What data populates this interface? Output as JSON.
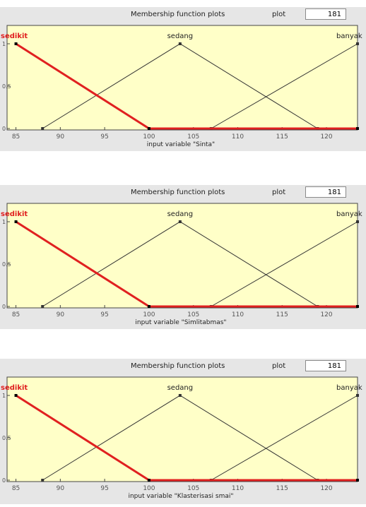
{
  "panels": [
    {
      "header_title": "Membership function plots",
      "plot_label": "plot",
      "plot_points": "181",
      "xlabel": "input variable \"Sinta\"",
      "xticks": [
        "85",
        "90",
        "95",
        "100",
        "105",
        "110",
        "115",
        "120"
      ],
      "yticks": [
        "0",
        "0.5",
        "1"
      ],
      "mf_labels": [
        "sedikit",
        "sedang",
        "banyak"
      ]
    },
    {
      "header_title": "Membership function plots",
      "plot_label": "plot",
      "plot_points": "181",
      "xlabel": "input variable \"Simlitabmas\"",
      "xticks": [
        "85",
        "90",
        "95",
        "100",
        "105",
        "110",
        "115",
        "120"
      ],
      "yticks": [
        "0",
        "0.5",
        "1"
      ],
      "mf_labels": [
        "sedikit",
        "sedang",
        "banyak"
      ]
    },
    {
      "header_title": "Membership function plots",
      "plot_label": "plot",
      "plot_points": "181",
      "xlabel": "input variable \"Klasterisasi smai\"",
      "xticks": [
        "85",
        "90",
        "95",
        "100",
        "105",
        "110",
        "115",
        "120"
      ],
      "yticks": [
        "0",
        "0.5",
        "1"
      ],
      "mf_labels": [
        "sedikit",
        "sedang",
        "banyak"
      ]
    }
  ],
  "chart_data": {
    "type": "line",
    "xlim": [
      84,
      123.5
    ],
    "ylim": [
      0,
      1
    ],
    "selected_series": "sedikit",
    "series": [
      {
        "name": "sedikit",
        "x": [
          85,
          100,
          123.5
        ],
        "y": [
          1,
          0,
          0
        ],
        "color": "#e02020"
      },
      {
        "name": "sedang",
        "x": [
          88,
          103.5,
          119
        ],
        "y": [
          0,
          1,
          0
        ],
        "color": "#333333"
      },
      {
        "name": "banyak",
        "x": [
          107,
          123.5
        ],
        "y": [
          0,
          1
        ],
        "color": "#333333"
      }
    ]
  },
  "colors": {
    "axes_bg": "#ffffc8",
    "panel_bg": "#e6e6e6",
    "selected": "#e02020",
    "line": "#333333"
  }
}
